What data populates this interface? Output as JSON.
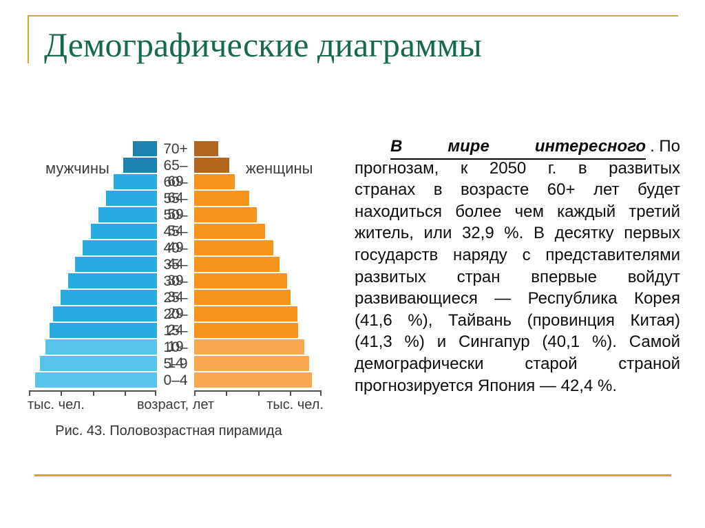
{
  "slide": {
    "title": "Демографические диаграммы"
  },
  "accent": {
    "gold": "#d5a52b",
    "title_green": "#17694c"
  },
  "chart_data": {
    "type": "bar",
    "subtype": "population-pyramid",
    "left_series_label": "мужчины",
    "right_series_label": "женщины",
    "axis_left_label": "тыс. чел.",
    "axis_center_label": "возраст, лет",
    "axis_right_label": "тыс. чел.",
    "caption": "Рис. 43. Половозрастная пирамида",
    "value_units": "relative bar length in px; axis ticks are unlabeled",
    "ticks_per_side": 5,
    "rows": [
      {
        "age": "70+",
        "male": 35,
        "female": 35,
        "tone": "dark"
      },
      {
        "age": "65–69",
        "male": 49,
        "female": 51,
        "tone": "dark"
      },
      {
        "age": "60–64",
        "male": 63,
        "female": 59,
        "tone": "mid"
      },
      {
        "age": "55–59",
        "male": 74,
        "female": 80,
        "tone": "mid"
      },
      {
        "age": "50–54",
        "male": 85,
        "female": 91,
        "tone": "mid"
      },
      {
        "age": "45–49",
        "male": 96,
        "female": 103,
        "tone": "mid"
      },
      {
        "age": "40–44",
        "male": 108,
        "female": 115,
        "tone": "mid"
      },
      {
        "age": "35–39",
        "male": 119,
        "female": 124,
        "tone": "mid"
      },
      {
        "age": "30–34",
        "male": 129,
        "female": 135,
        "tone": "mid"
      },
      {
        "age": "25–29",
        "male": 140,
        "female": 140,
        "tone": "mid"
      },
      {
        "age": "20–24",
        "male": 151,
        "female": 150,
        "tone": "mid"
      },
      {
        "age": "15–19",
        "male": 156,
        "female": 151,
        "tone": "mid"
      },
      {
        "age": "10–14",
        "male": 162,
        "female": 160,
        "tone": "light"
      },
      {
        "age": "5–9",
        "male": 170,
        "female": 167,
        "tone": "light"
      },
      {
        "age": "0–4",
        "male": 177,
        "female": 171,
        "tone": "light"
      }
    ],
    "colors": {
      "male": {
        "dark": "#1d82b2",
        "mid": "#29abe2",
        "light": "#57c4ee"
      },
      "female": {
        "dark": "#b2671d",
        "mid": "#f7941e",
        "light": "#f9a850"
      }
    }
  },
  "article": {
    "lead_words": [
      "В",
      "мире",
      "интересного"
    ],
    "lead_tail": ". По",
    "lines": [
      "прогнозам, к 2050 г. в развитых",
      "странах в возрасте 60+ лет будет",
      "находиться более чем каждый третий",
      "житель, или 32,9 %. В десятку первых",
      "государств наряду с представителями",
      "развитых стран впервые войдут",
      "развивающиеся — Республика Корея",
      "(41,6 %), Тайвань (провинция Китая)",
      "(41,3 %) и Сингапур (40,1 %). Самой",
      "демографически старой страной",
      "прогнозируется Япония — 42,4 %."
    ]
  }
}
